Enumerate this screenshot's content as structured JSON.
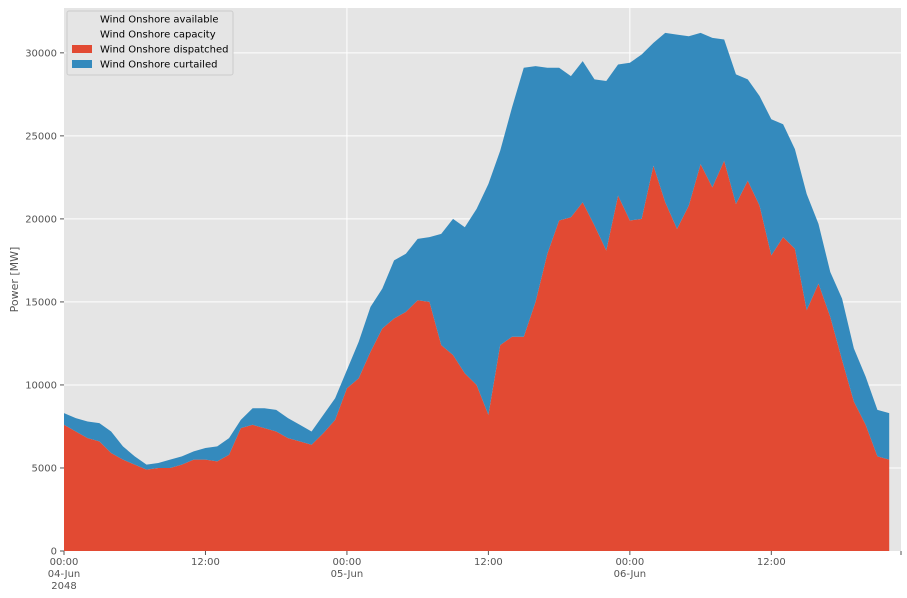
{
  "chart_data": {
    "type": "area",
    "stacked": true,
    "ylabel": "Power [MW]",
    "ylim": [
      0,
      32700
    ],
    "yticks": [
      0,
      5000,
      10000,
      15000,
      20000,
      25000,
      30000
    ],
    "xlim_hours": [
      0,
      71
    ],
    "x_ticks": [
      {
        "hour": 0,
        "lines": [
          "00:00",
          "04-Jun",
          "2048"
        ]
      },
      {
        "hour": 12,
        "lines": [
          "12:00"
        ]
      },
      {
        "hour": 24,
        "lines": [
          "00:00",
          "05-Jun"
        ]
      },
      {
        "hour": 36,
        "lines": [
          "12:00"
        ]
      },
      {
        "hour": 48,
        "lines": [
          "00:00",
          "06-Jun"
        ]
      },
      {
        "hour": 60,
        "lines": [
          "12:00"
        ]
      }
    ],
    "grid": true,
    "legend_position": "top-left",
    "legend": [
      {
        "label": "Wind Onshore available",
        "color": "none"
      },
      {
        "label": "Wind Onshore capacity",
        "color": "none"
      },
      {
        "label": "Wind Onshore dispatched",
        "color": "#E24A33"
      },
      {
        "label": "Wind Onshore curtailed",
        "color": "#348ABD"
      }
    ],
    "series": [
      {
        "name": "Wind Onshore dispatched",
        "color": "#E24A33",
        "values": [
          7600,
          7200,
          6800,
          6600,
          5900,
          5500,
          5200,
          4900,
          5000,
          5000,
          5200,
          5500,
          5500,
          5400,
          5800,
          7400,
          7600,
          7400,
          7200,
          6800,
          6600,
          6400,
          7100,
          7900,
          9800,
          10400,
          12000,
          13400,
          14000,
          14400,
          15100,
          15000,
          12400,
          11800,
          10700,
          10000,
          8200,
          12400,
          12900,
          12900,
          15000,
          17900,
          19900,
          20100,
          21000,
          19600,
          18100,
          21400,
          19900,
          20000,
          23200,
          21000,
          19400,
          20800,
          23300,
          21900,
          23500,
          20900,
          22300,
          20800,
          17800,
          18900,
          18200,
          14500,
          16100,
          14100,
          11500,
          9000,
          7600,
          5700,
          5500
        ]
      },
      {
        "name": "Wind Onshore curtailed",
        "color": "#348ABD",
        "values": [
          700,
          800,
          1000,
          1100,
          1300,
          800,
          500,
          300,
          300,
          500,
          500,
          500,
          700,
          900,
          1000,
          500,
          1000,
          1200,
          1300,
          1200,
          1000,
          800,
          1100,
          1300,
          1100,
          2200,
          2700,
          2400,
          3500,
          3500,
          3700,
          3900,
          6700,
          8200,
          8800,
          10600,
          13900,
          11700,
          13800,
          16200,
          14200,
          11200,
          9200,
          8500,
          8500,
          8800,
          10200,
          7900,
          9500,
          9900,
          7400,
          10200,
          11700,
          10200,
          7900,
          9000,
          7300,
          7800,
          6100,
          6600,
          8200,
          6800,
          6000,
          7000,
          3600,
          2700,
          3700,
          3200,
          2900,
          2800,
          2800
        ]
      }
    ]
  }
}
